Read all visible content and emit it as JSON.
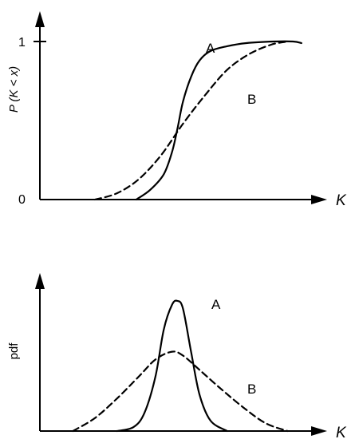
{
  "chart_data": [
    {
      "type": "line",
      "ylabel": "P (K < x)",
      "xlabel": "K",
      "y_ticks": [
        "0",
        "1"
      ],
      "ylim": [
        0,
        1
      ],
      "series": [
        {
          "name": "A",
          "style": "solid",
          "x": [
            0.35,
            0.4,
            0.45,
            0.48,
            0.5,
            0.52,
            0.55,
            0.58,
            0.62,
            0.68,
            0.75,
            0.85,
            0.92,
            0.95
          ],
          "values": [
            0.0,
            0.06,
            0.16,
            0.3,
            0.45,
            0.62,
            0.78,
            0.88,
            0.94,
            0.97,
            0.99,
            1.0,
            1.0,
            0.99
          ]
        },
        {
          "name": "B",
          "style": "dashed",
          "x": [
            0.2,
            0.28,
            0.36,
            0.44,
            0.52,
            0.6,
            0.68,
            0.76,
            0.84,
            0.9
          ],
          "values": [
            0.0,
            0.04,
            0.13,
            0.28,
            0.48,
            0.66,
            0.82,
            0.92,
            0.98,
            1.0
          ]
        }
      ]
    },
    {
      "type": "line",
      "ylabel": "pdf",
      "xlabel": "K",
      "series": [
        {
          "name": "A",
          "style": "solid",
          "x": [
            0.28,
            0.34,
            0.38,
            0.42,
            0.45,
            0.48,
            0.5,
            0.52,
            0.55,
            0.58,
            0.62,
            0.68
          ],
          "values": [
            0.0,
            0.03,
            0.14,
            0.42,
            0.78,
            0.97,
            1.0,
            0.94,
            0.6,
            0.28,
            0.08,
            0.0
          ]
        },
        {
          "name": "B",
          "style": "dashed",
          "x": [
            0.12,
            0.2,
            0.28,
            0.36,
            0.42,
            0.48,
            0.52,
            0.58,
            0.66,
            0.74,
            0.82,
            0.9
          ],
          "values": [
            0.0,
            0.1,
            0.25,
            0.42,
            0.55,
            0.61,
            0.58,
            0.47,
            0.32,
            0.18,
            0.06,
            0.0
          ]
        }
      ]
    }
  ]
}
